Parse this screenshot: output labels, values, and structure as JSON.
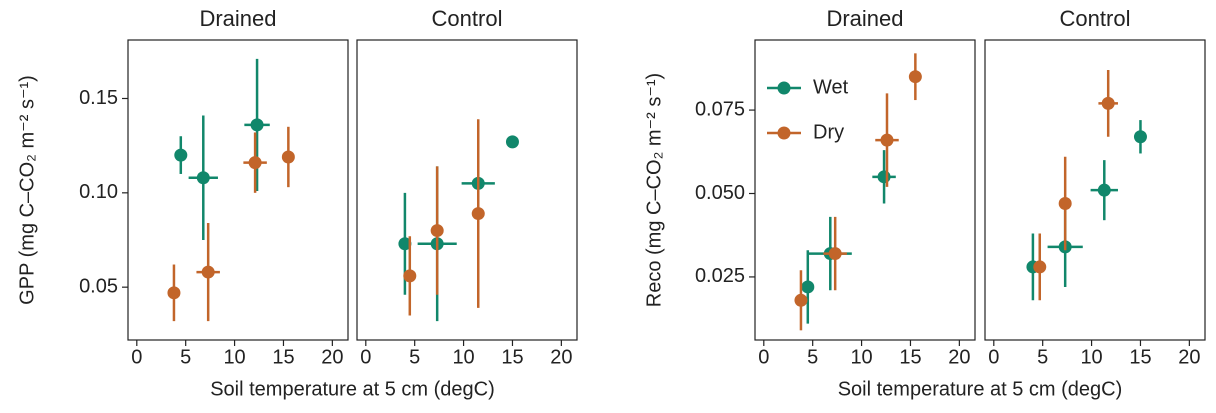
{
  "chart_data": [
    {
      "type": "scatter",
      "title": "Drained",
      "xlabel": "Soil temperature at 5 cm (degC)",
      "ylabel": "GPP (mg C–CO₂ m⁻² s⁻¹)",
      "xlim": [
        -0.9,
        21.6
      ],
      "xticks": [
        0,
        5,
        10,
        15,
        20
      ],
      "ylim": [
        0.022,
        0.181
      ],
      "yticks": [
        0.05,
        {
          "value": 0.1,
          "label": "0.10"
        },
        0.15
      ],
      "series": [
        {
          "color": "#11876b",
          "x": [
            4.5,
            6.8,
            12.3
          ],
          "values": [
            0.12,
            0.108,
            0.136
          ],
          "xerr": [
            null,
            1.5,
            1.3
          ],
          "yerr": [
            0.01,
            0.033,
            0.035
          ]
        },
        {
          "color": "#c2652a",
          "x": [
            3.8,
            7.3,
            12.1,
            15.5
          ],
          "values": [
            0.047,
            0.058,
            0.116,
            0.119
          ],
          "xerr": [
            null,
            1.2,
            1.2,
            null
          ],
          "yerr": [
            0.015,
            0.026,
            0.016,
            0.016
          ]
        }
      ]
    },
    {
      "type": "scatter",
      "title": "Control",
      "xlim": [
        -0.9,
        21.6
      ],
      "xticks": [
        0,
        5,
        10,
        15,
        20
      ],
      "ylim": [
        0.022,
        0.181
      ],
      "series": [
        {
          "color": "#11876b",
          "x": [
            4,
            7.3,
            11.5,
            15
          ],
          "values": [
            0.073,
            0.073,
            0.105,
            0.127
          ],
          "xerr": [
            null,
            2,
            1.7,
            null
          ],
          "yerr": [
            0.027,
            0.041,
            null,
            null
          ]
        },
        {
          "color": "#c2652a",
          "x": [
            4.5,
            7.3,
            11.5
          ],
          "values": [
            0.056,
            0.08,
            0.089
          ],
          "xerr": [
            null,
            null,
            null
          ],
          "yerr": [
            0.021,
            0.034,
            0.05
          ]
        }
      ]
    },
    {
      "type": "scatter",
      "title": "Drained",
      "xlabel": "Soil temperature at 5 cm (degC)",
      "ylabel": "Reco (mg C–CO₂ m⁻² s⁻¹)",
      "legend": "upper left",
      "xlim": [
        -0.9,
        21.6
      ],
      "xticks": [
        0,
        5,
        10,
        15,
        20
      ],
      "ylim": [
        0.0061,
        0.096
      ],
      "yticks": [
        {
          "value": 0.025,
          "label": "0.025"
        },
        {
          "value": 0.05,
          "label": "0.050"
        },
        0.075
      ],
      "series": [
        {
          "name": "Wet",
          "color": "#11876b",
          "x": [
            4.5,
            6.8,
            12.3
          ],
          "values": [
            0.022,
            0.032,
            0.055
          ],
          "xerr": [
            0.5,
            2.2,
            1.2
          ],
          "yerr": [
            0.011,
            0.011,
            0.008
          ]
        },
        {
          "name": "Dry",
          "color": "#c2652a",
          "x": [
            3.8,
            7.3,
            12.6,
            15.5
          ],
          "values": [
            0.018,
            0.032,
            0.066,
            0.085
          ],
          "xerr": [
            null,
            1.2,
            1.2,
            null
          ],
          "yerr": [
            0.009,
            0.011,
            0.014,
            0.007
          ]
        }
      ]
    },
    {
      "type": "scatter",
      "title": "Control",
      "xlim": [
        -0.9,
        21.6
      ],
      "xticks": [
        0,
        5,
        10,
        15,
        20
      ],
      "ylim": [
        0.0061,
        0.096
      ],
      "series": [
        {
          "color": "#11876b",
          "x": [
            4,
            7.3,
            11.3,
            15
          ],
          "values": [
            0.028,
            0.034,
            0.051,
            0.067
          ],
          "xerr": [
            null,
            1.8,
            1.4,
            null
          ],
          "yerr": [
            0.01,
            0.012,
            0.009,
            0.005
          ]
        },
        {
          "color": "#c2652a",
          "x": [
            4.7,
            7.3,
            11.7
          ],
          "values": [
            0.028,
            0.047,
            0.077
          ],
          "xerr": [
            null,
            null,
            1
          ],
          "yerr": [
            0.01,
            0.014,
            0.01
          ]
        }
      ]
    }
  ]
}
